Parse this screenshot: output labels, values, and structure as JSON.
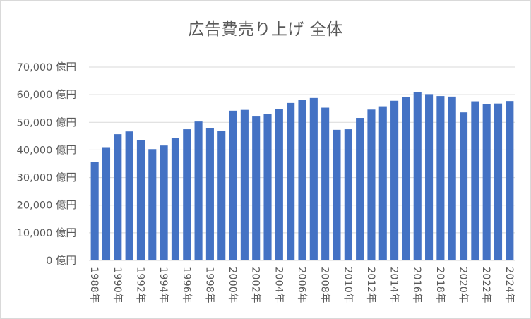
{
  "chart_data": {
    "type": "bar",
    "title": "広告費売り上げ 全体",
    "categories": [
      "1988年",
      "1989年",
      "1990年",
      "1991年",
      "1992年",
      "1993年",
      "1994年",
      "1995年",
      "1996年",
      "1997年",
      "1998年",
      "1999年",
      "2000年",
      "2001年",
      "2002年",
      "2003年",
      "2004年",
      "2005年",
      "2006年",
      "2007年",
      "2008年",
      "2009年",
      "2010年",
      "2011年",
      "2012年",
      "2013年",
      "2014年",
      "2015年",
      "2016年",
      "2017年",
      "2018年",
      "2019年",
      "2020年",
      "2021年",
      "2022年",
      "2023年",
      "2024年"
    ],
    "x_tick_labels": [
      "1988年",
      "1990年",
      "1992年",
      "1994年",
      "1996年",
      "1998年",
      "2000年",
      "2002年",
      "2004年",
      "2006年",
      "2008年",
      "2010年",
      "2012年",
      "2014年",
      "2016年",
      "2018年",
      "2020年",
      "2022年",
      "2024年"
    ],
    "values": [
      35600,
      41000,
      45700,
      46700,
      43600,
      40300,
      41600,
      44200,
      47500,
      50300,
      47800,
      46900,
      54200,
      54500,
      52100,
      52900,
      54800,
      57000,
      58200,
      58800,
      55300,
      47300,
      47500,
      51600,
      54600,
      55800,
      57800,
      59200,
      61000,
      60200,
      59500,
      59300,
      53600,
      57600,
      56700,
      56800,
      57700
    ],
    "y_tick_labels": [
      "0 億円",
      "10,000 億円",
      "20,000 億円",
      "30,000 億円",
      "40,000 億円",
      "50,000 億円",
      "60,000 億円",
      "70,000 億円"
    ],
    "ylim": [
      0,
      70000
    ],
    "grid": true,
    "bar_color": "#4472C4",
    "grid_color": "#d9d9d9"
  }
}
